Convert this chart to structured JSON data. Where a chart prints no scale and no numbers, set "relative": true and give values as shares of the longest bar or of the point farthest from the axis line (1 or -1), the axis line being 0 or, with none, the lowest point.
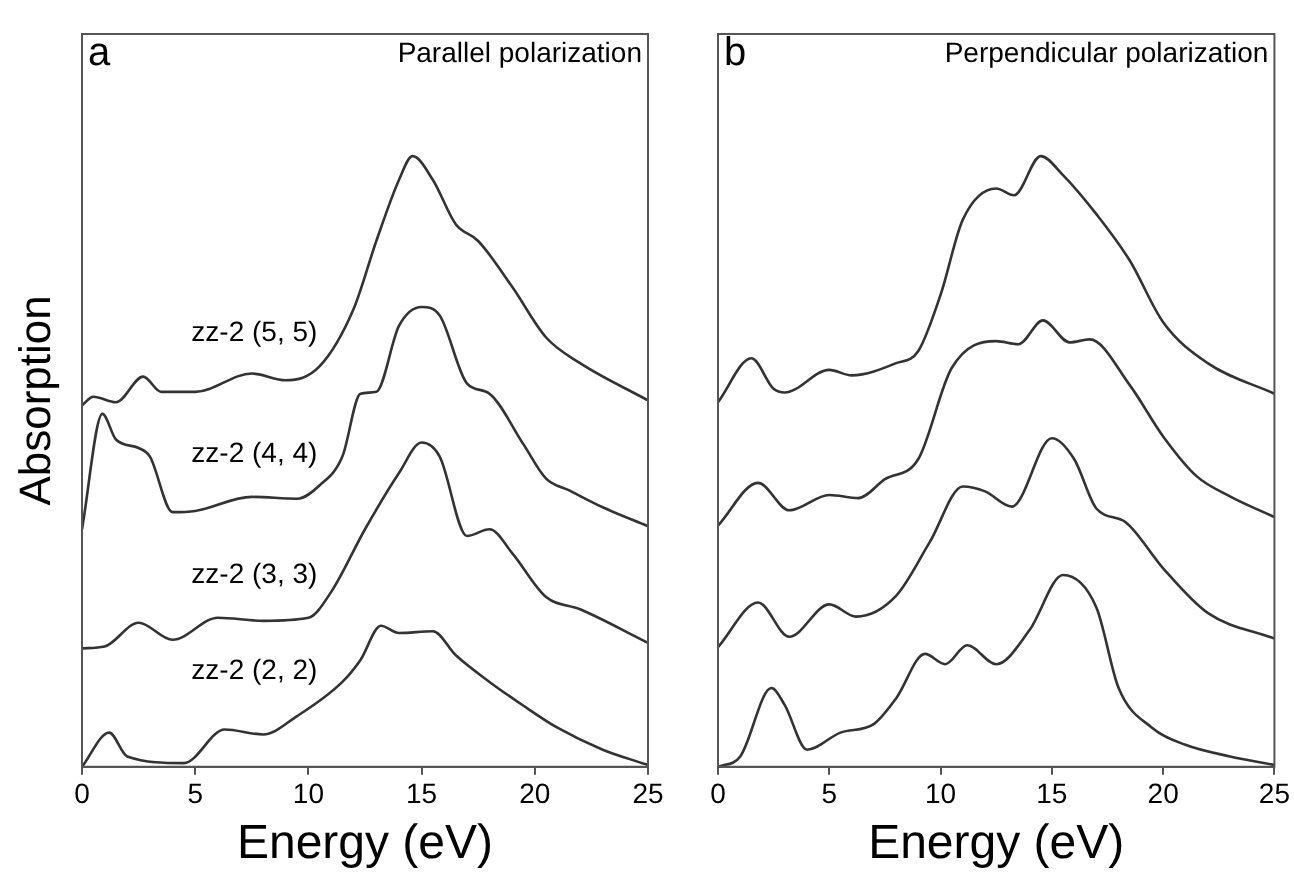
{
  "chart_data": [
    {
      "type": "line",
      "title": "Parallel polarization",
      "xlabel": "Energy (eV)",
      "ylabel": "Absorption",
      "annotations": [
        "a"
      ],
      "relative": true,
      "xlim": [
        0,
        25
      ],
      "xticks": [
        0,
        5,
        10,
        15,
        20,
        25
      ],
      "tick_labels": "x",
      "marker": "none",
      "line_style": "solid",
      "series": [
        {
          "name": "zz-2 (5, 5)",
          "color": "#333333",
          "x": [
            0,
            0.5,
            1.5,
            2.7,
            3.5,
            5,
            7.5,
            9,
            10.5,
            12,
            13,
            14,
            14.6,
            15.5,
            16.5,
            17.5,
            19,
            20.5,
            22,
            25
          ],
          "values": [
            0.592,
            0.606,
            0.597,
            0.639,
            0.614,
            0.614,
            0.644,
            0.633,
            0.656,
            0.75,
            0.861,
            0.961,
            1,
            0.961,
            0.889,
            0.861,
            0.786,
            0.703,
            0.661,
            0.6
          ]
        },
        {
          "name": "zz-2 (4, 4)",
          "color": "#333333",
          "x": [
            0,
            0.9,
            1.5,
            2.5,
            3,
            4,
            5,
            7.5,
            9.5,
            10.5,
            11.5,
            12.3,
            13,
            14,
            15,
            15.8,
            17,
            18,
            19.5,
            20.5,
            21.5,
            23,
            25
          ],
          "values": [
            0.389,
            0.578,
            0.536,
            0.522,
            0.508,
            0.417,
            0.419,
            0.442,
            0.439,
            0.461,
            0.508,
            0.611,
            0.614,
            0.722,
            0.753,
            0.739,
            0.628,
            0.611,
            0.528,
            0.472,
            0.453,
            0.425,
            0.394
          ]
        },
        {
          "name": "zz-2 (3, 3)",
          "color": "#333333",
          "x": [
            0,
            1,
            2.5,
            4,
            6,
            8,
            10,
            11,
            12.5,
            14,
            15,
            15.8,
            17,
            18,
            19,
            20.5,
            22,
            25
          ],
          "values": [
            0.194,
            0.197,
            0.236,
            0.208,
            0.244,
            0.239,
            0.244,
            0.286,
            0.389,
            0.481,
            0.531,
            0.508,
            0.378,
            0.389,
            0.35,
            0.278,
            0.258,
            0.203
          ]
        },
        {
          "name": "zz-2 (2, 2)",
          "color": "#333333",
          "x": [
            0,
            1.2,
            2,
            4.5,
            6.3,
            8,
            9.5,
            11.5,
            12.3,
            13.2,
            14,
            15.5,
            16.5,
            18,
            19.5,
            21,
            23,
            25
          ],
          "values": [
            0,
            0.056,
            0.017,
            0.006,
            0.061,
            0.053,
            0.083,
            0.139,
            0.175,
            0.231,
            0.219,
            0.222,
            0.183,
            0.139,
            0.1,
            0.064,
            0.028,
            0.003
          ]
        }
      ]
    },
    {
      "type": "line",
      "title": "Perpendicular polarization",
      "xlabel": "Energy (eV)",
      "annotations": [
        "b"
      ],
      "relative": true,
      "xlim": [
        0,
        25
      ],
      "xticks": [
        0,
        5,
        10,
        15,
        20,
        25
      ],
      "tick_labels": "x",
      "marker": "none",
      "line_style": "solid",
      "series": [
        {
          "color": "#333333",
          "x": [
            0,
            1.5,
            2.5,
            3,
            5,
            6,
            8,
            9,
            10,
            11,
            12.5,
            13.3,
            14.5,
            15.5,
            17,
            18.5,
            20,
            22,
            25
          ],
          "values": [
            0.597,
            0.669,
            0.619,
            0.613,
            0.65,
            0.641,
            0.661,
            0.681,
            0.773,
            0.896,
            0.947,
            0.936,
            1,
            0.969,
            0.905,
            0.829,
            0.728,
            0.661,
            0.611
          ]
        },
        {
          "color": "#333333",
          "x": [
            0,
            1.8,
            3.2,
            5,
            6.3,
            7.5,
            9,
            10.5,
            12.5,
            13.5,
            14.6,
            15.8,
            16.7,
            18.5,
            20,
            21.5,
            23,
            25
          ],
          "values": [
            0.395,
            0.465,
            0.42,
            0.445,
            0.44,
            0.471,
            0.504,
            0.653,
            0.697,
            0.692,
            0.731,
            0.695,
            0.7,
            0.625,
            0.541,
            0.476,
            0.443,
            0.409
          ]
        },
        {
          "color": "#333333",
          "x": [
            0,
            1.8,
            3.2,
            5,
            6.2,
            8,
            9.5,
            11,
            12,
            13.2,
            15,
            16,
            17,
            18.3,
            20,
            22,
            25
          ],
          "values": [
            0.196,
            0.269,
            0.213,
            0.266,
            0.246,
            0.28,
            0.367,
            0.459,
            0.451,
            0.426,
            0.538,
            0.504,
            0.423,
            0.401,
            0.325,
            0.252,
            0.21
          ]
        },
        {
          "color": "#333333",
          "x": [
            0,
            1,
            2.4,
            3,
            4,
            5.5,
            7,
            8,
            9.3,
            10.2,
            11.2,
            12.5,
            14,
            15.5,
            17,
            18,
            19.5,
            21,
            23,
            25
          ],
          "values": [
            0,
            0.017,
            0.129,
            0.101,
            0.028,
            0.056,
            0.07,
            0.112,
            0.185,
            0.168,
            0.199,
            0.168,
            0.224,
            0.314,
            0.261,
            0.129,
            0.064,
            0.036,
            0.017,
            0.003
          ]
        }
      ]
    }
  ]
}
